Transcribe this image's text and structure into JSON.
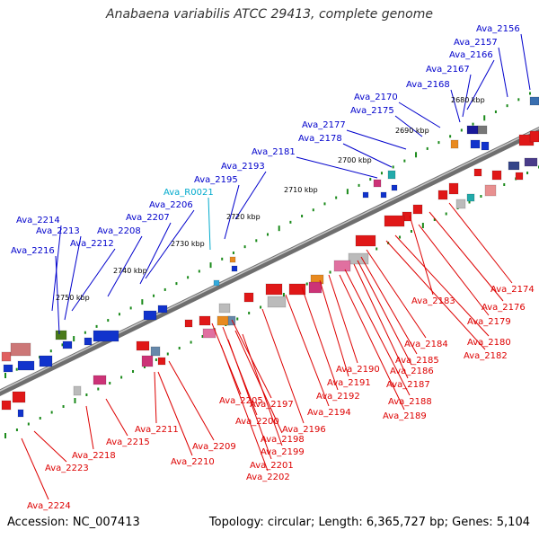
{
  "title": "Anabaena variabilis ATCC 29413, complete genome",
  "footer": {
    "accession": "Accession: NC_007413",
    "summary": "Topology: circular; Length: 6,365,727 bp; Genes: 5,104"
  },
  "colors": {
    "backbone": "#8a8a8a",
    "forward_label": "#0000cc",
    "reverse_label": "#dd0000",
    "rna_label": "#00aacc",
    "tick": "#1a8a1a"
  },
  "scale_labels": [
    "2680 kbp",
    "2690 kbp",
    "2700 kbp",
    "2710 kbp",
    "2720 kbp",
    "2730 kbp",
    "2740 kbp",
    "2750 kbp"
  ],
  "top_labels": [
    {
      "text": "Ava_2156",
      "kind": "forward"
    },
    {
      "text": "Ava_2157",
      "kind": "forward"
    },
    {
      "text": "Ava_2166",
      "kind": "forward"
    },
    {
      "text": "Ava_2167",
      "kind": "forward"
    },
    {
      "text": "Ava_2168",
      "kind": "forward"
    },
    {
      "text": "Ava_2170",
      "kind": "forward"
    },
    {
      "text": "Ava_2175",
      "kind": "forward"
    },
    {
      "text": "Ava_2177",
      "kind": "forward"
    },
    {
      "text": "Ava_2178",
      "kind": "forward"
    },
    {
      "text": "Ava_2181",
      "kind": "forward"
    },
    {
      "text": "Ava_2193",
      "kind": "forward"
    },
    {
      "text": "Ava_2195",
      "kind": "forward"
    },
    {
      "text": "Ava_R0021",
      "kind": "rna"
    },
    {
      "text": "Ava_2206",
      "kind": "forward"
    },
    {
      "text": "Ava_2207",
      "kind": "forward"
    },
    {
      "text": "Ava_2208",
      "kind": "forward"
    },
    {
      "text": "Ava_2212",
      "kind": "forward"
    },
    {
      "text": "Ava_2214",
      "kind": "forward"
    },
    {
      "text": "Ava_2213",
      "kind": "forward"
    },
    {
      "text": "Ava_2216",
      "kind": "forward"
    }
  ],
  "bottom_labels": [
    {
      "text": "Ava_2174",
      "kind": "reverse"
    },
    {
      "text": "Ava_2176",
      "kind": "reverse"
    },
    {
      "text": "Ava_2183",
      "kind": "reverse"
    },
    {
      "text": "Ava_2179",
      "kind": "reverse"
    },
    {
      "text": "Ava_2180",
      "kind": "reverse"
    },
    {
      "text": "Ava_2182",
      "kind": "reverse"
    },
    {
      "text": "Ava_2184",
      "kind": "reverse"
    },
    {
      "text": "Ava_2185",
      "kind": "reverse"
    },
    {
      "text": "Ava_2186",
      "kind": "reverse"
    },
    {
      "text": "Ava_2187",
      "kind": "reverse"
    },
    {
      "text": "Ava_2190",
      "kind": "reverse"
    },
    {
      "text": "Ava_2191",
      "kind": "reverse"
    },
    {
      "text": "Ava_2188",
      "kind": "reverse"
    },
    {
      "text": "Ava_2192",
      "kind": "reverse"
    },
    {
      "text": "Ava_2189",
      "kind": "reverse"
    },
    {
      "text": "Ava_2194",
      "kind": "reverse"
    },
    {
      "text": "Ava_2205",
      "kind": "reverse"
    },
    {
      "text": "Ava_2197",
      "kind": "reverse"
    },
    {
      "text": "Ava_2200",
      "kind": "reverse"
    },
    {
      "text": "Ava_2196",
      "kind": "reverse"
    },
    {
      "text": "Ava_2198",
      "kind": "reverse"
    },
    {
      "text": "Ava_2199",
      "kind": "reverse"
    },
    {
      "text": "Ava_2201",
      "kind": "reverse"
    },
    {
      "text": "Ava_2202",
      "kind": "reverse"
    },
    {
      "text": "Ava_2211",
      "kind": "reverse"
    },
    {
      "text": "Ava_2209",
      "kind": "reverse"
    },
    {
      "text": "Ava_2210",
      "kind": "reverse"
    },
    {
      "text": "Ava_2215",
      "kind": "reverse"
    },
    {
      "text": "Ava_2218",
      "kind": "reverse"
    },
    {
      "text": "Ava_2223",
      "kind": "reverse"
    },
    {
      "text": "Ava_2224",
      "kind": "reverse"
    }
  ]
}
